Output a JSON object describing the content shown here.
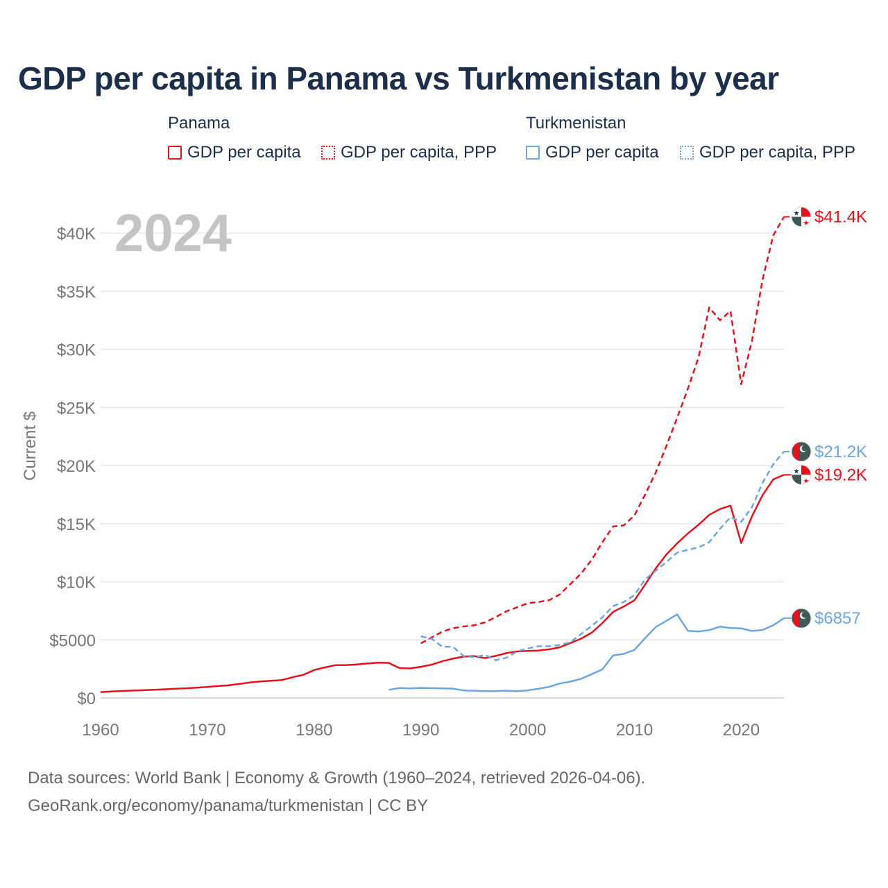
{
  "title": "GDP per capita in Panama vs Turkmenistan by year",
  "legend": {
    "groups": [
      {
        "country": "Panama",
        "color": "#e8101a",
        "items": [
          {
            "label": "GDP per capita",
            "style": "solid"
          },
          {
            "label": "GDP per capita, PPP",
            "style": "dotted"
          }
        ]
      },
      {
        "country": "Turkmenistan",
        "color": "#6aa6e2",
        "items": [
          {
            "label": "GDP per capita",
            "style": "solid"
          },
          {
            "label": "GDP per capita, PPP",
            "style": "dotted"
          }
        ]
      }
    ]
  },
  "footer": {
    "line1": "Data sources: World Bank | Economy & Growth (1960–2024, retrieved 2026-04-06).",
    "line2": "GeoRank.org/economy/panama/turkmenistan | CC BY"
  },
  "chart_data": {
    "type": "line",
    "title": "GDP per capita in Panama vs Turkmenistan by year",
    "year_watermark": "2024",
    "xlabel": "",
    "ylabel": "Current $",
    "xlim": [
      1960,
      2024
    ],
    "ylim": [
      0,
      42000
    ],
    "x_ticks": [
      1960,
      1970,
      1980,
      1990,
      2000,
      2010,
      2020
    ],
    "x_tick_labels": [
      "1960",
      "1970",
      "1980",
      "1990",
      "2000",
      "2010",
      "2020"
    ],
    "y_ticks": [
      0,
      5000,
      10000,
      15000,
      20000,
      25000,
      30000,
      35000,
      40000
    ],
    "y_tick_labels": [
      "$0",
      "$5000",
      "$10K",
      "$15K",
      "$20K",
      "$25K",
      "$30K",
      "$35K",
      "$40K"
    ],
    "grid": true,
    "series": [
      {
        "name": "Panama GDP per capita",
        "country": "Panama",
        "color": "#e8101a",
        "dash": "solid",
        "end_label": "$19.2K",
        "x": [
          1960,
          1961,
          1962,
          1963,
          1964,
          1965,
          1966,
          1967,
          1968,
          1969,
          1970,
          1971,
          1972,
          1973,
          1974,
          1975,
          1976,
          1977,
          1978,
          1979,
          1980,
          1981,
          1982,
          1983,
          1984,
          1985,
          1986,
          1987,
          1988,
          1989,
          1990,
          1991,
          1992,
          1993,
          1994,
          1995,
          1996,
          1997,
          1998,
          1999,
          2000,
          2001,
          2002,
          2003,
          2004,
          2005,
          2006,
          2007,
          2008,
          2009,
          2010,
          2011,
          2012,
          2013,
          2014,
          2015,
          2016,
          2017,
          2018,
          2019,
          2020,
          2021,
          2022,
          2023,
          2024
        ],
        "values": [
          500,
          550,
          600,
          630,
          660,
          700,
          740,
          790,
          830,
          880,
          950,
          1020,
          1090,
          1200,
          1330,
          1420,
          1480,
          1540,
          1780,
          1990,
          2400,
          2620,
          2820,
          2830,
          2880,
          2960,
          3030,
          3010,
          2560,
          2540,
          2680,
          2860,
          3150,
          3380,
          3560,
          3600,
          3420,
          3620,
          3850,
          4000,
          4050,
          4080,
          4180,
          4350,
          4720,
          5100,
          5620,
          6450,
          7400,
          7860,
          8400,
          9750,
          11150,
          12350,
          13300,
          14150,
          14900,
          15750,
          16250,
          16550,
          13330,
          15620,
          17450,
          18800,
          19200
        ]
      },
      {
        "name": "Panama GDP per capita, PPP",
        "country": "Panama",
        "color": "#e8101a",
        "dash": "dashed",
        "end_label": "$41.4K",
        "x": [
          1990,
          1991,
          1992,
          1993,
          1994,
          1995,
          1996,
          1997,
          1998,
          1999,
          2000,
          2001,
          2002,
          2003,
          2004,
          2005,
          2006,
          2007,
          2008,
          2009,
          2010,
          2011,
          2012,
          2013,
          2014,
          2015,
          2016,
          2017,
          2018,
          2019,
          2020,
          2021,
          2022,
          2023,
          2024
        ],
        "values": [
          4700,
          5200,
          5700,
          6000,
          6150,
          6250,
          6500,
          6950,
          7450,
          7800,
          8150,
          8250,
          8400,
          8900,
          9800,
          10700,
          11900,
          13400,
          14750,
          14850,
          15700,
          17500,
          19400,
          21700,
          24100,
          26600,
          29300,
          33600,
          32500,
          33300,
          27000,
          30700,
          36000,
          39800,
          41400
        ]
      },
      {
        "name": "Turkmenistan GDP per capita",
        "country": "Turkmenistan",
        "color": "#6aa6e2",
        "dash": "solid",
        "end_label": "$6857",
        "x": [
          1987,
          1988,
          1989,
          1990,
          1991,
          1992,
          1993,
          1994,
          1995,
          1996,
          1997,
          1998,
          1999,
          2000,
          2001,
          2002,
          2003,
          2004,
          2005,
          2006,
          2007,
          2008,
          2009,
          2010,
          2011,
          2012,
          2013,
          2014,
          2015,
          2016,
          2017,
          2018,
          2019,
          2020,
          2021,
          2022,
          2023,
          2024
        ],
        "values": [
          700,
          850,
          820,
          860,
          840,
          820,
          800,
          640,
          620,
          580,
          590,
          620,
          580,
          650,
          780,
          950,
          1240,
          1400,
          1640,
          2040,
          2460,
          3660,
          3790,
          4130,
          5140,
          6100,
          6640,
          7180,
          5780,
          5720,
          5830,
          6130,
          6020,
          5980,
          5760,
          5850,
          6250,
          6857
        ]
      },
      {
        "name": "Turkmenistan GDP per capita, PPP",
        "country": "Turkmenistan",
        "color": "#6aa6e2",
        "dash": "dashed",
        "end_label": "$21.2K",
        "x": [
          1990,
          1991,
          1992,
          1993,
          1994,
          1995,
          1996,
          1997,
          1998,
          1999,
          2000,
          2001,
          2002,
          2003,
          2004,
          2005,
          2006,
          2007,
          2008,
          2009,
          2010,
          2011,
          2012,
          2013,
          2014,
          2015,
          2016,
          2017,
          2018,
          2019,
          2020,
          2021,
          2022,
          2023,
          2024
        ],
        "values": [
          5300,
          5100,
          4400,
          4400,
          3600,
          3500,
          3700,
          3250,
          3450,
          4000,
          4250,
          4450,
          4450,
          4550,
          4800,
          5500,
          6200,
          6950,
          7900,
          8250,
          8850,
          10200,
          10950,
          11700,
          12500,
          12750,
          12950,
          13400,
          14550,
          15550,
          15150,
          16400,
          18500,
          20100,
          21200
        ]
      }
    ]
  }
}
